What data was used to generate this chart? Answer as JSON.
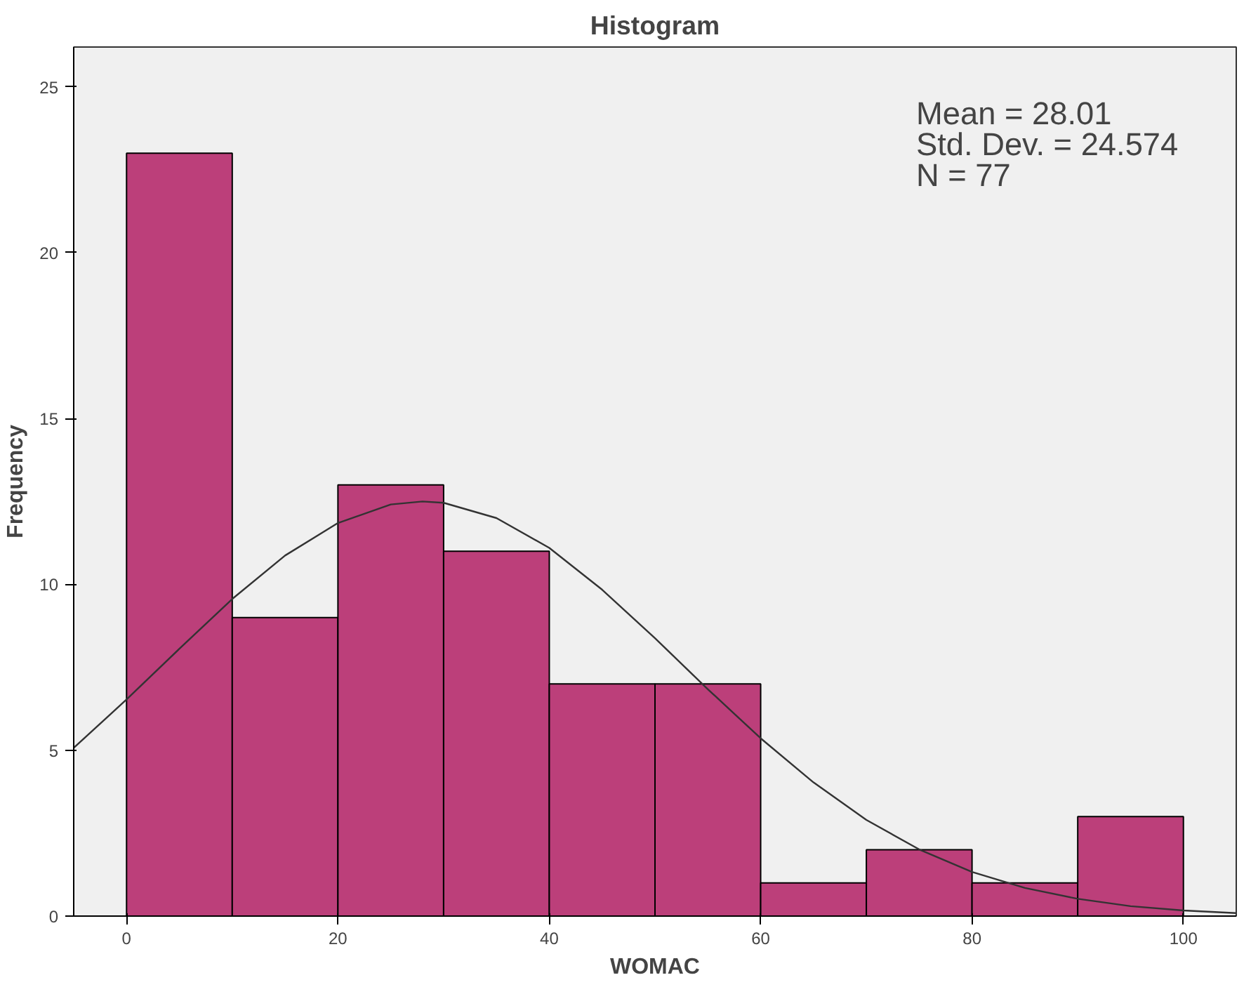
{
  "chart_data": {
    "type": "histogram",
    "title": "Histogram",
    "xlabel": "WOMAC",
    "ylabel": "Frequency",
    "bins": [
      0,
      10,
      20,
      30,
      40,
      50,
      60,
      70,
      80,
      90,
      100
    ],
    "values": [
      23,
      9,
      13,
      11,
      7,
      7,
      1,
      2,
      1,
      3
    ],
    "color": "#bc3f7a",
    "series": [
      {
        "type": "line",
        "color": "#333333",
        "x": [
          -5,
          0,
          5,
          10,
          15,
          20,
          25,
          28,
          30,
          35,
          40,
          45,
          50,
          55,
          60,
          65,
          70,
          75,
          80,
          85,
          90,
          95,
          100,
          105
        ],
        "values": [
          5.07,
          6.53,
          8.06,
          9.56,
          10.87,
          11.85,
          12.41,
          12.5,
          12.46,
          12.0,
          11.1,
          9.84,
          8.38,
          6.84,
          5.36,
          4.03,
          2.9,
          2.01,
          1.33,
          0.85,
          0.52,
          0.3,
          0.17,
          0.09
        ]
      }
    ],
    "xlim": [
      -5,
      105
    ],
    "ylim": [
      0,
      26.2
    ],
    "xticks": [
      0,
      20,
      40,
      60,
      80,
      100
    ],
    "yticks": [
      0,
      5,
      10,
      15,
      20,
      25
    ],
    "grid": false,
    "annotations": [
      "Mean = 28.01",
      "Std. Dev. = 24.574",
      "N = 77"
    ]
  }
}
